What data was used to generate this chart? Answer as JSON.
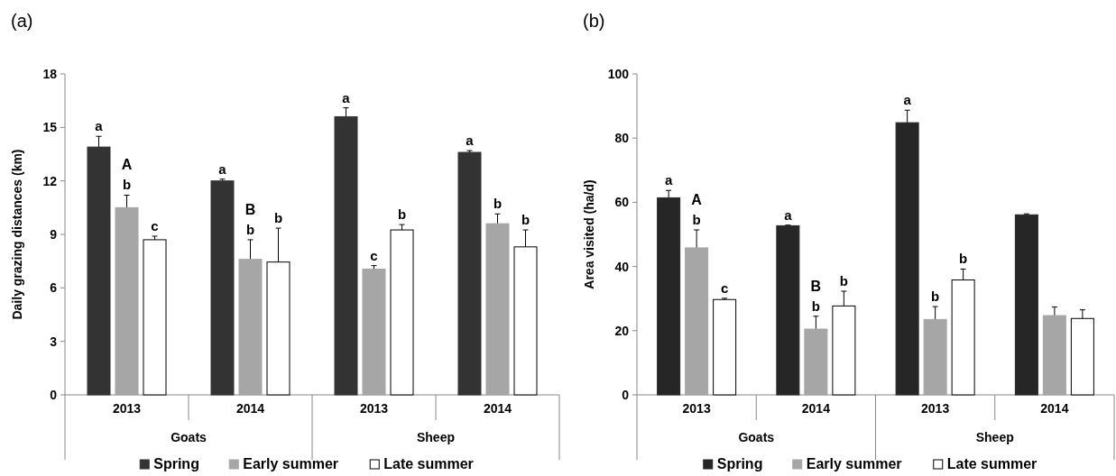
{
  "chart_data": [
    {
      "type": "bar",
      "title": "(a)",
      "ylabel": "Daily grazing distances (km)",
      "categories": [
        "2013",
        "2014",
        "2013",
        "2014"
      ],
      "ylim": [
        0,
        18
      ],
      "yticks": [
        0,
        3,
        6,
        9,
        12,
        15,
        18
      ],
      "grid": false,
      "legend": "bottom",
      "series": [
        {
          "name": "Spring",
          "color": "#333333",
          "values": [
            13.9,
            12.0,
            15.6,
            13.6
          ],
          "errors": [
            0.6,
            0.1,
            0.5,
            0.1
          ],
          "value_labels": [
            "a",
            "a",
            "a",
            "a"
          ]
        },
        {
          "name": "Early summer",
          "color": "#a6a6a6",
          "values": [
            10.5,
            7.6,
            7.05,
            9.6
          ],
          "errors": [
            0.7,
            1.1,
            0.2,
            0.55
          ],
          "value_labels": [
            "b",
            "b",
            "c",
            "b"
          ]
        },
        {
          "name": "Late summer",
          "color": "#ffffff",
          "values": [
            8.7,
            7.45,
            9.25,
            8.3
          ],
          "errors": [
            0.2,
            1.9,
            0.3,
            0.95
          ],
          "value_labels": [
            "c",
            "b",
            "b",
            "b"
          ]
        }
      ],
      "annotations": [
        "Goats",
        "Sheep",
        "A",
        "B"
      ]
    },
    {
      "type": "bar",
      "title": "(b)",
      "ylabel": "Area visited (ha/d)",
      "categories": [
        "2013",
        "2014",
        "2013",
        "2014"
      ],
      "ylim": [
        0,
        100
      ],
      "yticks": [
        0,
        20,
        40,
        60,
        80,
        100
      ],
      "grid": false,
      "legend": "bottom",
      "series": [
        {
          "name": "Spring",
          "color": "#262626",
          "values": [
            61.4,
            52.7,
            84.8,
            56.1
          ],
          "errors": [
            2.3,
            0.2,
            3.9,
            0.3
          ],
          "value_labels": [
            "a",
            "a",
            "a",
            null
          ]
        },
        {
          "name": "Early summer",
          "color": "#a6a6a6",
          "values": [
            45.8,
            20.5,
            23.5,
            24.7
          ],
          "errors": [
            5.6,
            4,
            4,
            2.7
          ],
          "value_labels": [
            "b",
            "b",
            "b",
            null
          ]
        },
        {
          "name": "Late summer",
          "color": "#ffffff",
          "values": [
            29.7,
            27.7,
            35.8,
            23.8
          ],
          "errors": [
            0.4,
            4.6,
            3.4,
            2.7
          ],
          "value_labels": [
            "c",
            "b",
            "b",
            null
          ]
        }
      ],
      "annotations": [
        "Goats",
        "Sheep",
        "A",
        "B"
      ]
    }
  ]
}
